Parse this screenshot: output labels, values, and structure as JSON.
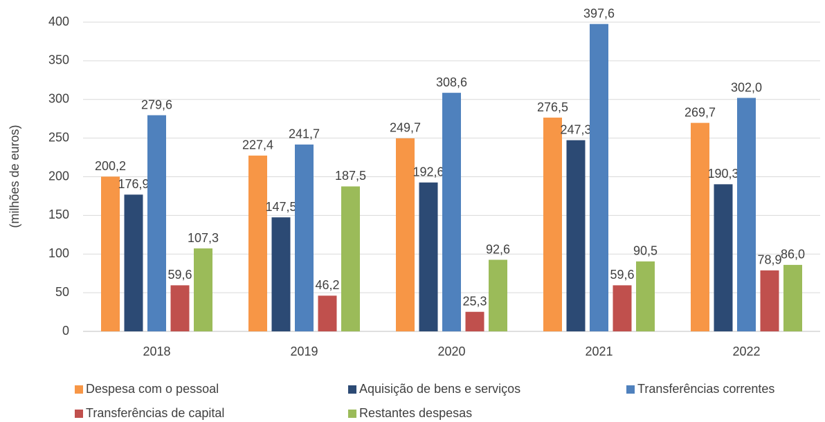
{
  "chart_data": {
    "type": "bar",
    "y_label": "(milhões de euros)",
    "categories": [
      "2018",
      "2019",
      "2020",
      "2021",
      "2022"
    ],
    "series": [
      {
        "name": "Despesa com o pessoal",
        "color": "#f79646",
        "values": [
          200.2,
          227.4,
          249.7,
          276.5,
          269.7
        ],
        "value_labels": [
          "200,2",
          "227,4",
          "249,7",
          "276,5",
          "269,7"
        ]
      },
      {
        "name": "Aquisição de bens e serviços",
        "color": "#2c4a74",
        "values": [
          176.9,
          147.5,
          192.6,
          247.3,
          190.3
        ],
        "value_labels": [
          "176,9",
          "147,5",
          "192,6",
          "247,3",
          "190,3"
        ]
      },
      {
        "name": "Transferências correntes",
        "color": "#4f81bd",
        "values": [
          279.6,
          241.7,
          308.6,
          397.6,
          302.0
        ],
        "value_labels": [
          "279,6",
          "241,7",
          "308,6",
          "397,6",
          "302,0"
        ]
      },
      {
        "name": "Transferências de capital",
        "color": "#c0504d",
        "values": [
          59.6,
          46.2,
          25.3,
          59.6,
          78.9
        ],
        "value_labels": [
          "59,6",
          "46,2",
          "25,3",
          "59,6",
          "78,9"
        ]
      },
      {
        "name": "Restantes despesas",
        "color": "#9bbb59",
        "values": [
          107.3,
          187.5,
          92.6,
          90.5,
          86.0
        ],
        "value_labels": [
          "107,3",
          "187,5",
          "92,6",
          "90,5",
          "86,0"
        ]
      }
    ],
    "ylim": [
      0,
      400
    ],
    "yticks": [
      0,
      50,
      100,
      150,
      200,
      250,
      300,
      350,
      400
    ],
    "grid": true,
    "legend": "bottom"
  }
}
